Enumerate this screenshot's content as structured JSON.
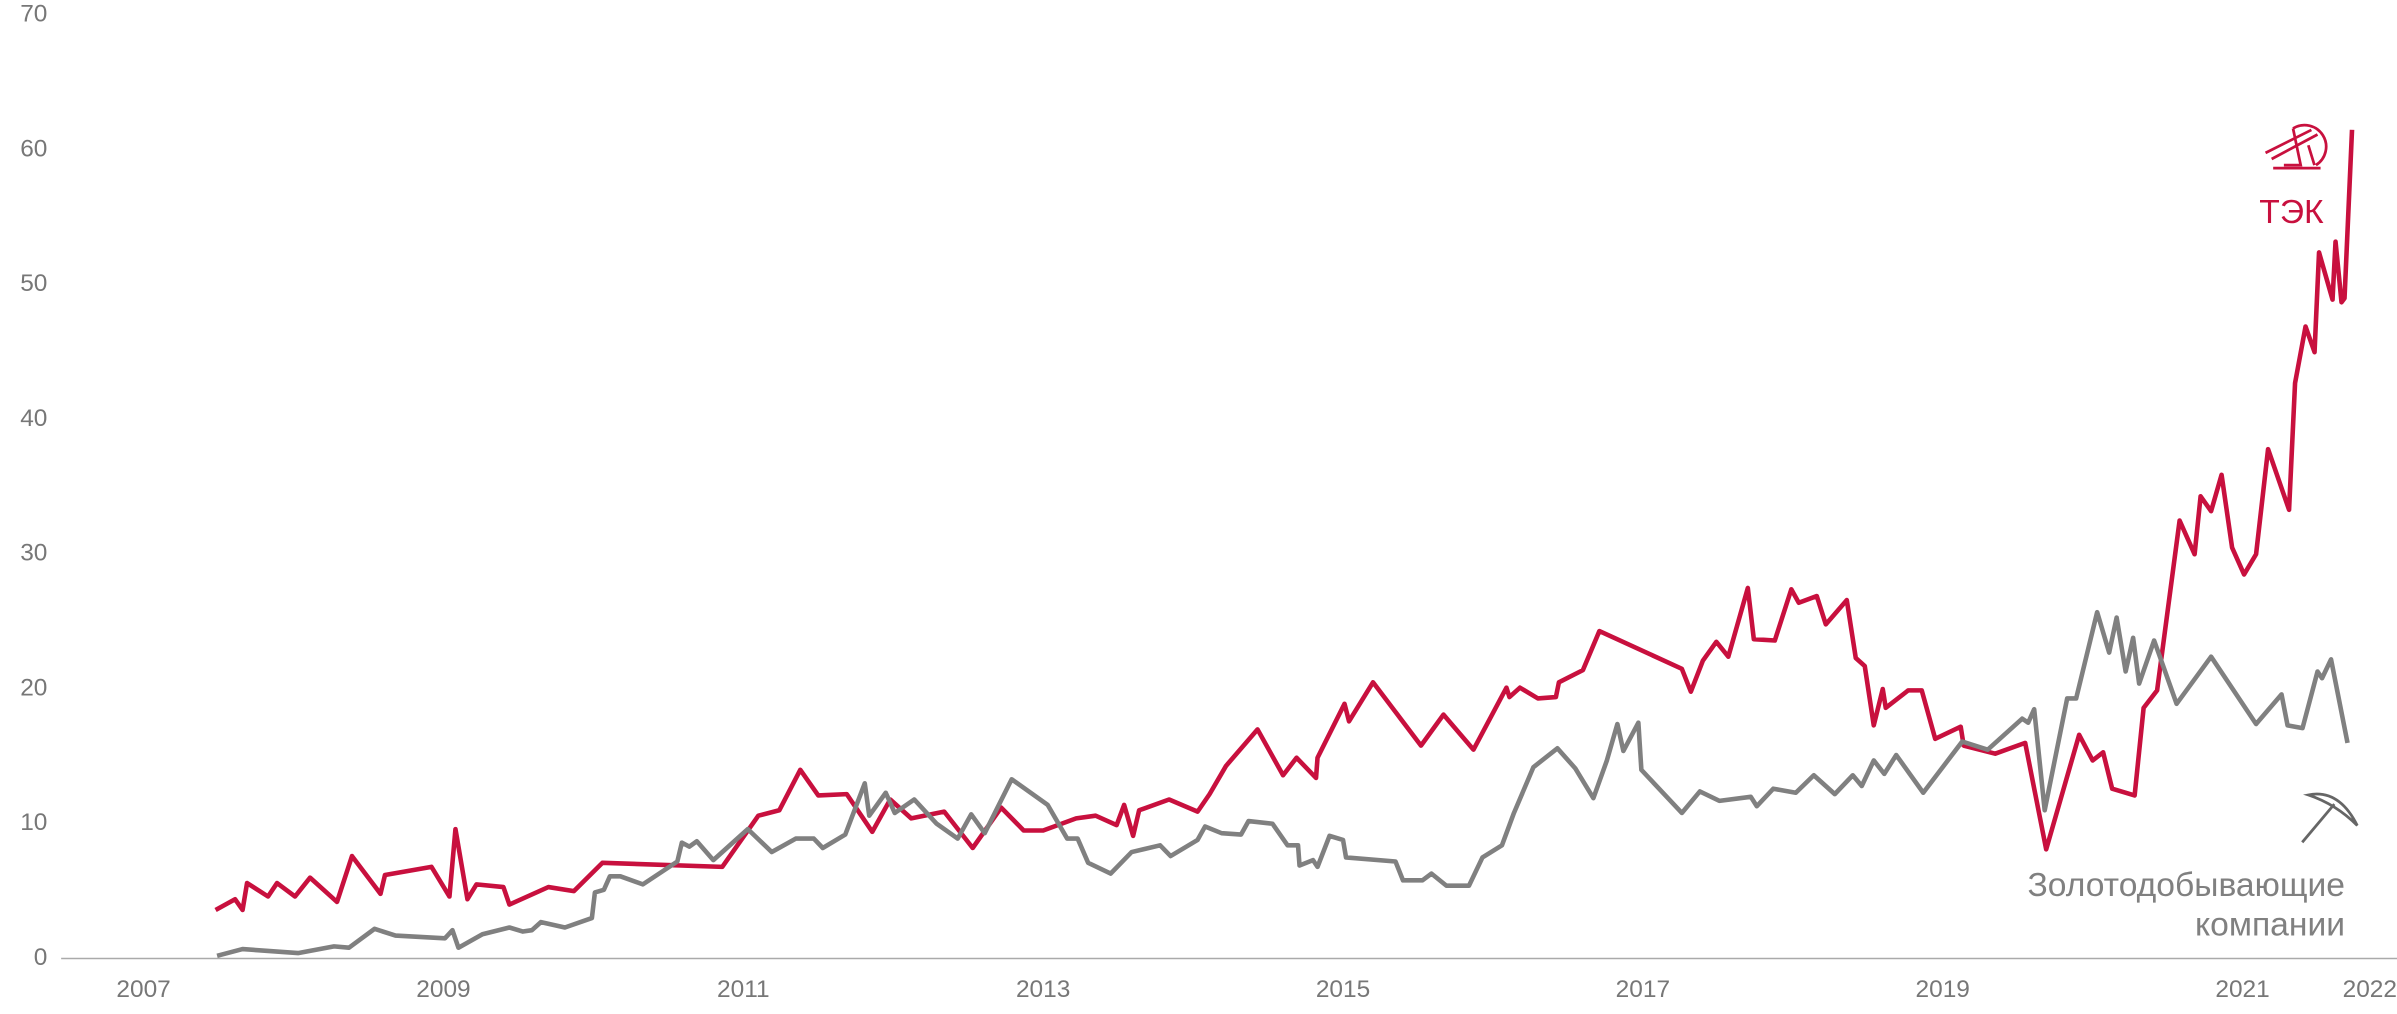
{
  "chart_data": {
    "type": "line",
    "xlim": [
      2006.45,
      2022.03
    ],
    "xticks": [
      2007,
      2009,
      2011,
      2013,
      2015,
      2017,
      2019,
      2021,
      2022
    ],
    "ylim": [
      0,
      70
    ],
    "yticks": [
      0,
      10,
      20,
      30,
      40,
      50,
      60,
      70
    ],
    "grid": false,
    "series": [
      {
        "name": "ТЭК",
        "color": "#c8103e",
        "x": [
          2007.48,
          2007.61,
          2007.66,
          2007.69,
          2007.83,
          2007.89,
          2008.01,
          2008.11,
          2008.29,
          2008.39,
          2008.58,
          2008.61,
          2008.92,
          2009.04,
          2009.08,
          2009.16,
          2009.22,
          2009.4,
          2009.44,
          2009.7,
          2009.87,
          2010.06,
          2010.86,
          2011.1,
          2011.24,
          2011.38,
          2011.5,
          2011.69,
          2011.86,
          2011.98,
          2012.12,
          2012.34,
          2012.53,
          2012.72,
          2012.87,
          2013.0,
          2013.22,
          2013.35,
          2013.49,
          2013.54,
          2013.6,
          2013.64,
          2013.84,
          2014.03,
          2014.11,
          2014.22,
          2014.43,
          2014.6,
          2014.69,
          2014.82,
          2014.83,
          2015.01,
          2015.04,
          2015.2,
          2015.52,
          2015.67,
          2015.87,
          2016.09,
          2016.11,
          2016.18,
          2016.3,
          2016.42,
          2016.44,
          2016.6,
          2016.71,
          2017.26,
          2017.32,
          2017.4,
          2017.49,
          2017.57,
          2017.7,
          2017.74,
          2017.88,
          2017.99,
          2018.04,
          2018.16,
          2018.22,
          2018.36,
          2018.42,
          2018.48,
          2018.54,
          2018.6,
          2018.62,
          2018.77,
          2018.86,
          2018.95,
          2019.12,
          2019.14,
          2019.35,
          2019.55,
          2019.69,
          2019.91,
          2020.0,
          2020.07,
          2020.13,
          2020.28,
          2020.34,
          2020.43,
          2020.58,
          2020.68,
          2020.72,
          2020.79,
          2020.86,
          2020.93,
          2021.01,
          2021.09,
          2021.17,
          2021.31,
          2021.35,
          2021.42,
          2021.48,
          2021.51,
          2021.6,
          2021.62,
          2021.66,
          2021.68,
          2021.73
        ],
        "values": [
          3.6,
          4.4,
          3.6,
          5.6,
          4.6,
          5.6,
          4.6,
          6.0,
          4.2,
          7.6,
          4.8,
          6.2,
          6.8,
          4.6,
          9.6,
          4.4,
          5.5,
          5.3,
          4.0,
          5.3,
          5.0,
          7.1,
          6.8,
          10.6,
          11.0,
          14.0,
          12.1,
          12.2,
          9.4,
          11.8,
          10.4,
          10.9,
          8.2,
          11.2,
          9.5,
          9.5,
          10.4,
          10.6,
          9.9,
          11.4,
          9.1,
          11.0,
          11.8,
          10.9,
          12.2,
          14.3,
          17.0,
          13.6,
          14.9,
          13.4,
          14.9,
          18.9,
          17.6,
          20.5,
          15.8,
          18.1,
          15.5,
          20.1,
          19.4,
          20.1,
          19.3,
          19.4,
          20.5,
          21.4,
          24.3,
          21.5,
          19.8,
          22.1,
          23.5,
          22.4,
          27.5,
          23.7,
          23.6,
          27.4,
          26.4,
          26.9,
          24.8,
          26.6,
          22.3,
          21.7,
          17.3,
          20.0,
          18.6,
          19.9,
          19.9,
          16.3,
          17.2,
          15.8,
          15.2,
          16.0,
          8.1,
          16.6,
          14.7,
          15.3,
          12.6,
          12.1,
          18.6,
          19.9,
          32.5,
          30.0,
          34.3,
          33.2,
          35.9,
          30.5,
          28.5,
          30.0,
          37.8,
          33.3,
          42.7,
          46.9,
          45.0,
          52.4,
          48.9,
          53.2,
          48.7,
          49.0,
          61.5
        ]
      },
      {
        "name": "Золотодобывающие компании",
        "color": "#808080",
        "x": [
          2007.49,
          2007.66,
          2008.03,
          2008.27,
          2008.37,
          2008.54,
          2008.68,
          2009.01,
          2009.06,
          2009.1,
          2009.26,
          2009.44,
          2009.53,
          2009.59,
          2009.65,
          2009.81,
          2009.99,
          2010.01,
          2010.07,
          2010.11,
          2010.18,
          2010.33,
          2010.56,
          2010.59,
          2010.64,
          2010.69,
          2010.8,
          2011.03,
          2011.19,
          2011.35,
          2011.47,
          2011.53,
          2011.68,
          2011.81,
          2011.84,
          2011.95,
          2012.01,
          2012.14,
          2012.29,
          2012.43,
          2012.52,
          2012.61,
          2012.79,
          2013.03,
          2013.16,
          2013.23,
          2013.3,
          2013.45,
          2013.59,
          2013.78,
          2013.85,
          2014.03,
          2014.08,
          2014.19,
          2014.32,
          2014.37,
          2014.53,
          2014.63,
          2014.7,
          2014.71,
          2014.8,
          2014.83,
          2014.91,
          2015.0,
          2015.02,
          2015.35,
          2015.4,
          2015.53,
          2015.59,
          2015.69,
          2015.84,
          2015.93,
          2016.06,
          2016.14,
          2016.27,
          2016.43,
          2016.55,
          2016.67,
          2016.76,
          2016.83,
          2016.87,
          2016.97,
          2016.99,
          2017.26,
          2017.38,
          2017.51,
          2017.72,
          2017.76,
          2017.87,
          2018.02,
          2018.14,
          2018.28,
          2018.4,
          2018.46,
          2018.54,
          2018.61,
          2018.69,
          2018.87,
          2019.13,
          2019.3,
          2019.53,
          2019.57,
          2019.61,
          2019.68,
          2019.83,
          2019.89,
          2020.03,
          2020.11,
          2020.16,
          2020.22,
          2020.27,
          2020.31,
          2020.41,
          2020.56,
          2020.79,
          2021.09,
          2021.26,
          2021.3,
          2021.4,
          2021.5,
          2021.53,
          2021.59,
          2021.7
        ],
        "values": [
          0.2,
          0.7,
          0.4,
          0.9,
          0.8,
          2.2,
          1.7,
          1.5,
          2.1,
          0.8,
          1.8,
          2.3,
          2.0,
          2.1,
          2.7,
          2.3,
          3.0,
          4.9,
          5.1,
          6.1,
          6.1,
          5.5,
          7.2,
          8.6,
          8.3,
          8.7,
          7.3,
          9.6,
          7.9,
          8.9,
          8.9,
          8.2,
          9.2,
          13.0,
          10.6,
          12.3,
          10.8,
          11.8,
          10.0,
          8.9,
          10.7,
          9.3,
          13.3,
          11.4,
          8.9,
          8.9,
          7.1,
          6.3,
          7.9,
          8.4,
          7.6,
          8.8,
          9.8,
          9.3,
          9.2,
          10.2,
          10.0,
          8.4,
          8.4,
          6.9,
          7.3,
          6.8,
          9.1,
          8.8,
          7.5,
          7.2,
          5.8,
          5.8,
          6.3,
          5.4,
          5.4,
          7.5,
          8.4,
          10.8,
          14.2,
          15.6,
          14.1,
          11.9,
          14.7,
          17.4,
          15.4,
          17.5,
          14.0,
          10.8,
          12.4,
          11.7,
          12.0,
          11.3,
          12.6,
          12.3,
          13.6,
          12.2,
          13.6,
          12.8,
          14.7,
          13.7,
          15.1,
          12.3,
          16.1,
          15.5,
          17.8,
          17.5,
          18.5,
          11.0,
          19.3,
          19.3,
          25.7,
          22.7,
          25.3,
          21.3,
          23.8,
          20.4,
          23.6,
          18.9,
          22.4,
          17.4,
          19.6,
          17.3,
          17.1,
          21.3,
          20.8,
          22.2,
          16.0
        ]
      }
    ]
  }
}
